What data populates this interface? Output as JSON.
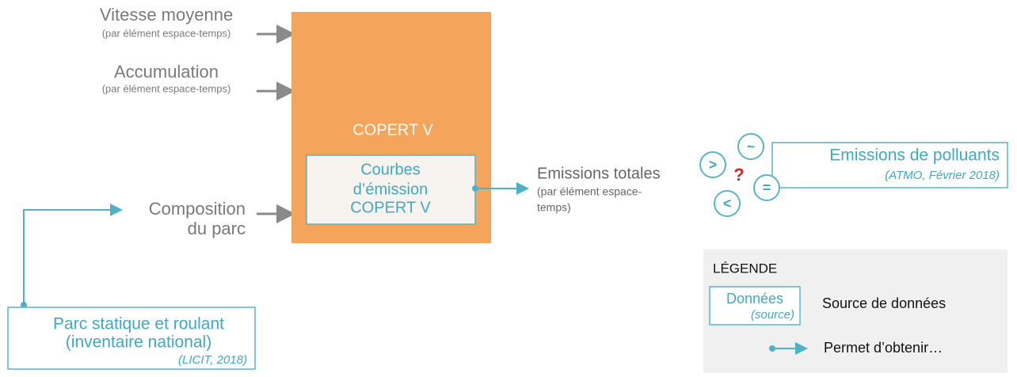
{
  "inputs": [
    {
      "label": "Vitesse moyenne",
      "sublabel": "(par élément espace-temps)"
    },
    {
      "label": "Accumulation",
      "sublabel": "(par élément espace-temps)"
    },
    {
      "lines": [
        "Composition",
        "du parc"
      ]
    }
  ],
  "model": {
    "title": "COPERT V",
    "inner": [
      "Courbes",
      "d’émission",
      "COPERT V"
    ]
  },
  "output": {
    "label": "Emissions totales",
    "sublabel": [
      "(par élément espace-",
      "temps)"
    ]
  },
  "source": {
    "lines": [
      "Parc statique et roulant",
      "(inventaire national)"
    ],
    "citation": "(LICIT, 2018)"
  },
  "icons": [
    ">",
    "~",
    "=",
    "<",
    "?"
  ],
  "validation": {
    "label": "Emissions de polluants",
    "citation": "(ATMO, Février 2018)"
  },
  "legend": {
    "title": "LÉGENDE",
    "box_label": "Données",
    "box_sub": "(source)",
    "box_text": "Source de données",
    "arrow_text": "Permet d’obtenir…"
  }
}
